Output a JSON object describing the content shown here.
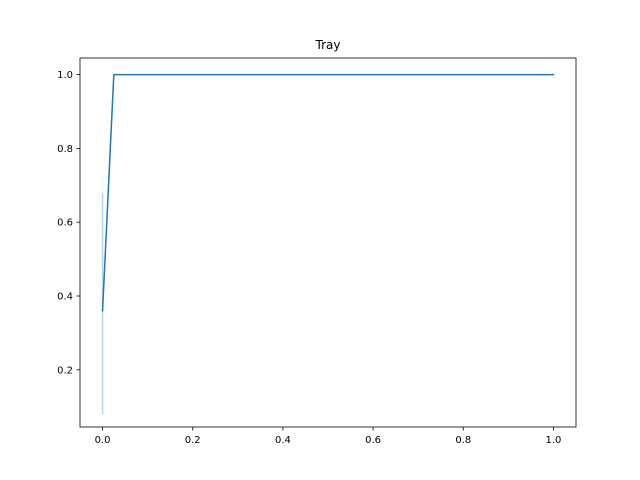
{
  "chart_data": {
    "type": "line",
    "title": "Tray",
    "xlabel": "",
    "ylabel": "",
    "xlim": [
      -0.05,
      1.05
    ],
    "ylim": [
      0.045,
      1.045
    ],
    "grid": false,
    "x_ticks": [
      0.0,
      0.2,
      0.4,
      0.6,
      0.8,
      1.0
    ],
    "x_tick_labels": [
      "0.0",
      "0.2",
      "0.4",
      "0.6",
      "0.8",
      "1.0"
    ],
    "y_ticks": [
      0.2,
      0.4,
      0.6,
      0.8,
      1.0
    ],
    "y_tick_labels": [
      "0.2",
      "0.4",
      "0.6",
      "0.8",
      "1.0"
    ],
    "series": [
      {
        "color": "#1f77b4",
        "x": [
          0.0,
          0.025,
          1.0
        ],
        "y": [
          0.36,
          1.0,
          1.0
        ]
      }
    ],
    "band": {
      "color": "#1f77b4",
      "x": 0.0,
      "y_low": 0.08,
      "y_high": 0.68
    }
  }
}
